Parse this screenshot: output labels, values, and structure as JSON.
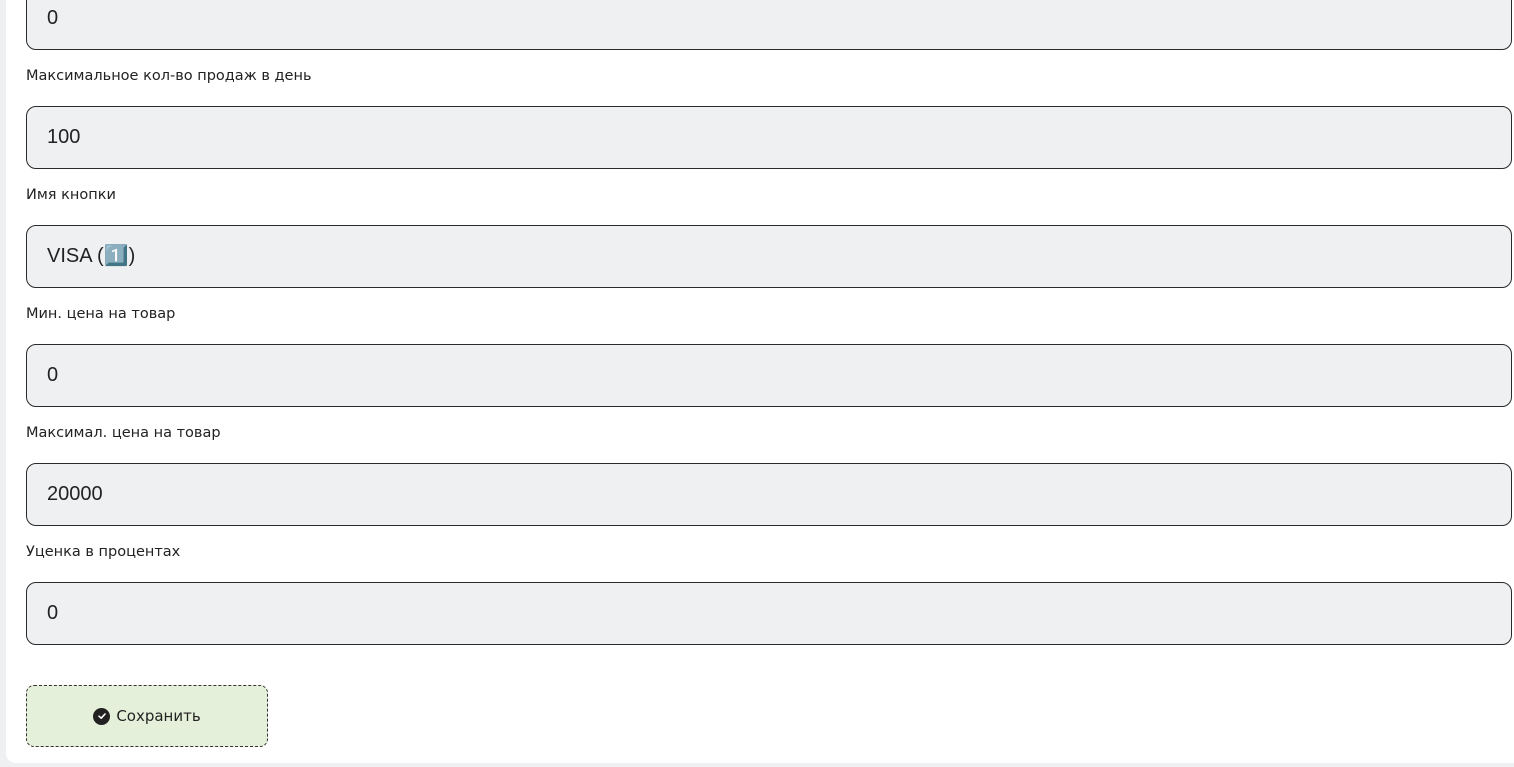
{
  "fields": [
    {
      "label": "",
      "value": "0"
    },
    {
      "label": "Максимальное кол-во продаж в день",
      "value": "100"
    },
    {
      "label": "Имя кнопки",
      "value": "VISA (1️⃣)"
    },
    {
      "label": "Мин. цена на товар",
      "value": "0"
    },
    {
      "label": "Максимал. цена на товар",
      "value": "20000"
    },
    {
      "label": "Уценка в процентах",
      "value": "0"
    }
  ],
  "save_button": {
    "label": "Сохранить",
    "icon": "check-circle-icon"
  },
  "colors": {
    "input_bg": "#eef0f2",
    "button_bg": "#e4f0d9"
  }
}
